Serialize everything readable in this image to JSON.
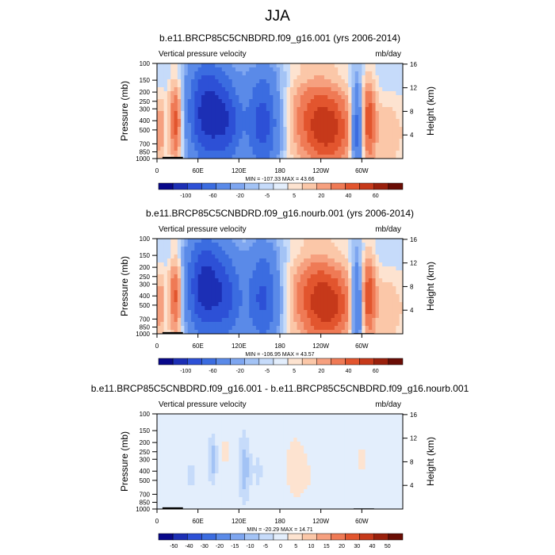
{
  "figure": {
    "title": "JJA"
  },
  "chart_data": [
    {
      "type": "heatmap",
      "title": "b.e11.BRCP85C5CNBDRD.f09_g16.001 (yrs 2006-2014)",
      "left_label": "Vertical pressure velocity",
      "right_label": "mb/day",
      "ylabel": "Pressure (mb)",
      "y2label": "Height (km)",
      "x_ticks": [
        "0",
        "60E",
        "120E",
        "180",
        "120W",
        "60W"
      ],
      "y_ticks": [
        "100",
        "150",
        "200",
        "250",
        "300",
        "400",
        "500",
        "700",
        "850",
        "1000"
      ],
      "y2_ticks": [
        "16",
        "12",
        "8",
        "4"
      ],
      "xlim": [
        0,
        360
      ],
      "ylim_mb": [
        1000,
        100
      ],
      "y_scale": "log",
      "stats": "MIN = -107.33   MAX = 43.66",
      "colorbar_labels": [
        "-100",
        "-60",
        "-20",
        "-5",
        "5",
        "20",
        "40",
        "60"
      ],
      "colorbar_colors": [
        "#08088a",
        "#1c2fb5",
        "#2d50d6",
        "#3b6ce0",
        "#5a8ae8",
        "#7ea6f0",
        "#a3c3f5",
        "#c6dbfa",
        "#e3eefc",
        "#fde3d0",
        "#fbc7a8",
        "#f6a07f",
        "#ef7a55",
        "#e2552e",
        "#c6391a",
        "#9a200c",
        "#6a0d05"
      ],
      "features": [
        {
          "lon": 5,
          "mb": 500,
          "w": 3,
          "h": 0.5,
          "value": 25
        },
        {
          "lon": 28,
          "mb": 400,
          "w": 7,
          "h": 0.7,
          "value": 40
        },
        {
          "lon": 72,
          "mb": 330,
          "w": 20,
          "h": 0.9,
          "value": -90
        },
        {
          "lon": 105,
          "mb": 420,
          "w": 15,
          "h": 0.8,
          "value": -55
        },
        {
          "lon": 155,
          "mb": 420,
          "w": 18,
          "h": 0.9,
          "value": -70
        },
        {
          "lon": 235,
          "mb": 350,
          "w": 30,
          "h": 0.8,
          "value": 30
        },
        {
          "lon": 255,
          "mb": 550,
          "w": 25,
          "h": 0.6,
          "value": 25
        },
        {
          "lon": 293,
          "mb": 500,
          "w": 6,
          "h": 0.8,
          "value": -60
        },
        {
          "lon": 310,
          "mb": 400,
          "w": 8,
          "h": 0.7,
          "value": 35
        },
        {
          "lon": 340,
          "mb": 550,
          "w": 12,
          "h": 0.5,
          "value": 12
        },
        {
          "lon": 180,
          "mb": 140,
          "w": 360,
          "h": 0.25,
          "value": -4
        }
      ]
    },
    {
      "type": "heatmap",
      "title": "b.e11.BRCP85C5CNBDRD.f09_g16.nourb.001 (yrs 2006-2014)",
      "left_label": "Vertical pressure velocity",
      "right_label": "mb/day",
      "ylabel": "Pressure (mb)",
      "y2label": "Height (km)",
      "x_ticks": [
        "0",
        "60E",
        "120E",
        "180",
        "120W",
        "60W"
      ],
      "y_ticks": [
        "100",
        "150",
        "200",
        "250",
        "300",
        "400",
        "500",
        "700",
        "850",
        "1000"
      ],
      "y2_ticks": [
        "16",
        "12",
        "8",
        "4"
      ],
      "xlim": [
        0,
        360
      ],
      "ylim_mb": [
        1000,
        100
      ],
      "y_scale": "log",
      "stats": "MIN = -106.95   MAX = 43.57",
      "colorbar_labels": [
        "-100",
        "-60",
        "-20",
        "-5",
        "5",
        "20",
        "40",
        "60"
      ],
      "colorbar_colors": [
        "#08088a",
        "#1c2fb5",
        "#2d50d6",
        "#3b6ce0",
        "#5a8ae8",
        "#7ea6f0",
        "#a3c3f5",
        "#c6dbfa",
        "#e3eefc",
        "#fde3d0",
        "#fbc7a8",
        "#f6a07f",
        "#ef7a55",
        "#e2552e",
        "#c6391a",
        "#9a200c",
        "#6a0d05"
      ],
      "features": [
        {
          "lon": 5,
          "mb": 500,
          "w": 3,
          "h": 0.5,
          "value": 25
        },
        {
          "lon": 28,
          "mb": 400,
          "w": 7,
          "h": 0.7,
          "value": 40
        },
        {
          "lon": 70,
          "mb": 330,
          "w": 20,
          "h": 0.9,
          "value": -90
        },
        {
          "lon": 105,
          "mb": 420,
          "w": 15,
          "h": 0.8,
          "value": -50
        },
        {
          "lon": 155,
          "mb": 420,
          "w": 18,
          "h": 0.9,
          "value": -65
        },
        {
          "lon": 235,
          "mb": 380,
          "w": 30,
          "h": 0.8,
          "value": 30
        },
        {
          "lon": 255,
          "mb": 550,
          "w": 25,
          "h": 0.6,
          "value": 25
        },
        {
          "lon": 293,
          "mb": 500,
          "w": 6,
          "h": 0.8,
          "value": -55
        },
        {
          "lon": 310,
          "mb": 400,
          "w": 8,
          "h": 0.7,
          "value": 35
        },
        {
          "lon": 340,
          "mb": 550,
          "w": 12,
          "h": 0.5,
          "value": 12
        },
        {
          "lon": 180,
          "mb": 140,
          "w": 360,
          "h": 0.25,
          "value": -4
        }
      ]
    },
    {
      "type": "heatmap",
      "title": "b.e11.BRCP85C5CNBDRD.f09_g16.001 - b.e11.BRCP85C5CNBDRD.f09_g16.nourb.001",
      "left_label": "Vertical pressure velocity",
      "right_label": "mb/day",
      "ylabel": "Pressure (mb)",
      "y2label": "Height (km)",
      "x_ticks": [
        "0",
        "60E",
        "120E",
        "180",
        "120W",
        "60W"
      ],
      "y_ticks": [
        "100",
        "150",
        "200",
        "250",
        "300",
        "400",
        "500",
        "700",
        "850",
        "1000"
      ],
      "y2_ticks": [
        "16",
        "12",
        "8",
        "4"
      ],
      "xlim": [
        0,
        360
      ],
      "ylim_mb": [
        1000,
        100
      ],
      "y_scale": "log",
      "stats": "MIN = -20.29   MAX = 14.71",
      "colorbar_labels": [
        "-50",
        "-40",
        "-30",
        "-20",
        "-15",
        "-10",
        "-5",
        "0",
        "5",
        "10",
        "15",
        "20",
        "30",
        "40",
        "50"
      ],
      "colorbar_colors": [
        "#08088a",
        "#1c2fb5",
        "#2d50d6",
        "#3b6ce0",
        "#5a8ae8",
        "#7ea6f0",
        "#a3c3f5",
        "#c6dbfa",
        "#e3eefc",
        "#fde3d0",
        "#fbc7a8",
        "#f6a07f",
        "#ef7a55",
        "#e2552e",
        "#c6391a",
        "#9a200c",
        "#6a0d05"
      ],
      "features": [
        {
          "lon": 82,
          "mb": 300,
          "w": 4,
          "h": 0.4,
          "value": -10
        },
        {
          "lon": 128,
          "mb": 370,
          "w": 5,
          "h": 0.5,
          "value": -12
        },
        {
          "lon": 50,
          "mb": 450,
          "w": 6,
          "h": 0.6,
          "value": -3
        },
        {
          "lon": 148,
          "mb": 400,
          "w": 8,
          "h": 0.5,
          "value": -3
        },
        {
          "lon": 202,
          "mb": 350,
          "w": 12,
          "h": 0.6,
          "value": 4
        },
        {
          "lon": 232,
          "mb": 500,
          "w": 20,
          "h": 0.7,
          "value": 2
        },
        {
          "lon": 300,
          "mb": 300,
          "w": 6,
          "h": 0.6,
          "value": 3
        },
        {
          "lon": 20,
          "mb": 300,
          "w": 10,
          "h": 0.5,
          "value": 2
        },
        {
          "lon": 335,
          "mb": 450,
          "w": 8,
          "h": 0.7,
          "value": -2
        },
        {
          "lon": 100,
          "mb": 250,
          "w": 6,
          "h": 0.5,
          "value": 3
        }
      ]
    }
  ]
}
